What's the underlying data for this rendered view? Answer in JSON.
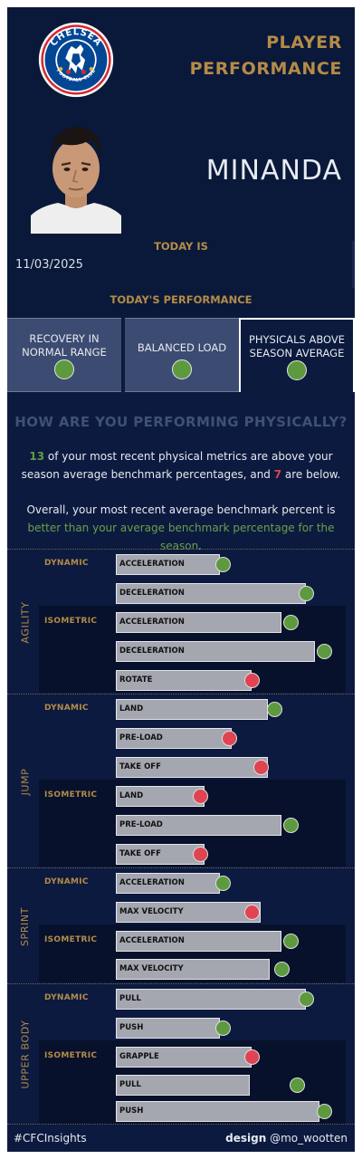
{
  "header": {
    "title_line1": "PLAYER",
    "title_line2": "PERFORMANCE",
    "player_name": "MINANDA",
    "today_label": "TODAY IS",
    "date": "11/03/2025",
    "performance_label": "TODAY'S PERFORMANCE",
    "crest": {
      "icon": "chelsea-crest-icon",
      "top_text": "CHELSEA",
      "bottom_text": "FOOTBALL CLUB",
      "colors": {
        "blue": "#034694",
        "ring": "#ffffff",
        "red": "#d32a2f",
        "gold": "#e2b53e"
      }
    }
  },
  "status_cards": [
    {
      "label": "RECOVERY IN NORMAL RANGE",
      "status": "good",
      "selected": false
    },
    {
      "label": "BALANCED LOAD",
      "status": "good",
      "selected": false
    },
    {
      "label": "PHYSICALS ABOVE SEASON AVERAGE",
      "status": "good",
      "selected": true
    }
  ],
  "summary": {
    "question": "HOW ARE YOU PERFORMING PHYSICALLY?",
    "above_count": "13",
    "line1_mid": " of your most recent physical metrics are above your season average benchmark percentages, and ",
    "below_count": "7",
    "line1_end": " are below.",
    "line2_start": "Overall, your most recent average benchmark percent is ",
    "line2_highlight": "better than your average benchmark percentage for the season",
    "line2_end": "."
  },
  "colors": {
    "background": "#0c1a3f",
    "accent_gold": "#b58b47",
    "good_green": "#5d9a3f",
    "bad_red": "#e04452",
    "bar_grey": "#a4a6b0"
  },
  "metric_groups": [
    {
      "name": "AGILITY",
      "categories": [
        {
          "name": "DYNAMIC",
          "metrics": [
            {
              "label": "ACCELERATION",
              "current": 0.46,
              "benchmark": 0.47,
              "status": "good"
            },
            {
              "label": "DECELERATION",
              "current": 0.84,
              "benchmark": 0.84,
              "status": "good"
            }
          ]
        },
        {
          "name": "ISOMETRIC",
          "metrics": [
            {
              "label": "ACCELERATION",
              "current": 0.73,
              "benchmark": 0.77,
              "status": "good"
            },
            {
              "label": "DECELERATION",
              "current": 0.88,
              "benchmark": 0.92,
              "status": "good"
            },
            {
              "label": "ROTATE",
              "current": 0.6,
              "benchmark": 0.6,
              "status": "bad"
            }
          ]
        }
      ]
    },
    {
      "name": "JUMP",
      "categories": [
        {
          "name": "DYNAMIC",
          "metrics": [
            {
              "label": "LAND",
              "current": 0.67,
              "benchmark": 0.7,
              "status": "good"
            },
            {
              "label": "PRE-LOAD",
              "current": 0.51,
              "benchmark": 0.5,
              "status": "bad"
            }
          ]
        },
        {
          "name": "DYNAMIC_EXTRA",
          "metrics": [
            {
              "label": "TAKE OFF",
              "current": 0.67,
              "benchmark": 0.64,
              "status": "bad"
            }
          ]
        },
        {
          "name": "ISOMETRIC",
          "metrics": [
            {
              "label": "LAND",
              "current": 0.39,
              "benchmark": 0.37,
              "status": "bad"
            },
            {
              "label": "PRE-LOAD",
              "current": 0.73,
              "benchmark": 0.77,
              "status": "good"
            },
            {
              "label": "TAKE OFF",
              "current": 0.39,
              "benchmark": 0.37,
              "status": "bad"
            }
          ]
        }
      ]
    },
    {
      "name": "SPRINT",
      "categories": [
        {
          "name": "DYNAMIC",
          "metrics": [
            {
              "label": "ACCELERATION",
              "current": 0.46,
              "benchmark": 0.47,
              "status": "good"
            },
            {
              "label": "MAX VELOCITY",
              "current": 0.64,
              "benchmark": 0.6,
              "status": "bad"
            }
          ]
        },
        {
          "name": "ISOMETRIC",
          "metrics": [
            {
              "label": "ACCELERATION",
              "current": 0.73,
              "benchmark": 0.77,
              "status": "good"
            },
            {
              "label": "MAX VELOCITY",
              "current": 0.68,
              "benchmark": 0.73,
              "status": "good"
            }
          ]
        }
      ]
    },
    {
      "name": "UPPER BODY",
      "categories": [
        {
          "name": "DYNAMIC",
          "metrics": [
            {
              "label": "PULL",
              "current": 0.84,
              "benchmark": 0.84,
              "status": "good"
            },
            {
              "label": "PUSH",
              "current": 0.46,
              "benchmark": 0.47,
              "status": "good"
            }
          ]
        },
        {
          "name": "ISOMETRIC",
          "metrics": [
            {
              "label": "GRAPPLE",
              "current": 0.6,
              "benchmark": 0.6,
              "status": "bad"
            },
            {
              "label": "PULL",
              "current": 0.59,
              "benchmark": 0.8,
              "status": "good"
            },
            {
              "label": "PUSH",
              "current": 0.9,
              "benchmark": 0.92,
              "status": "good"
            }
          ]
        }
      ]
    }
  ],
  "footer": {
    "hashtag": "#CFCInsights",
    "credit_prefix": "design",
    "credit_handle": " @mo_wootten"
  }
}
